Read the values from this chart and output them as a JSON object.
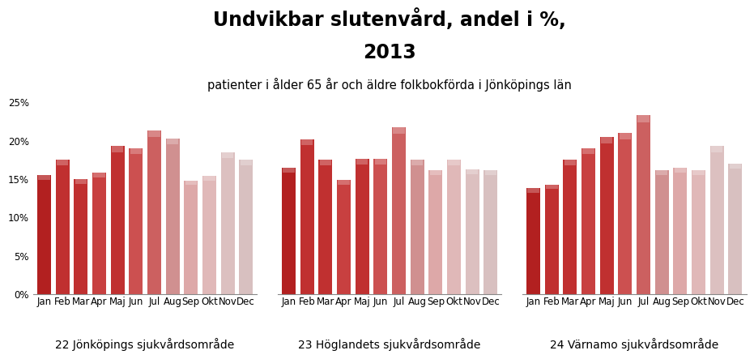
{
  "title_line1": "Undvikbar slutenvård, andel i %,",
  "title_line2": "2013",
  "subtitle": "patienter i ålder 65 år och äldre folkbokförda i Jönköpings län",
  "groups": [
    {
      "name": "22 Jönköpings sjukvårdsområde",
      "values": [
        15.5,
        17.5,
        15.0,
        15.8,
        19.3,
        19.0,
        21.3,
        20.3,
        14.8,
        15.4,
        18.5,
        17.5
      ]
    },
    {
      "name": "23 Höglandets sjukvårdsområde",
      "values": [
        16.5,
        20.2,
        17.5,
        14.9,
        17.6,
        17.6,
        21.8,
        17.5,
        16.2,
        17.5,
        16.3,
        16.2
      ]
    },
    {
      "name": "24 Värnamo sjukvårdsområde",
      "values": [
        13.8,
        14.3,
        17.5,
        19.0,
        20.5,
        21.0,
        23.3,
        16.2,
        16.5,
        16.2,
        19.3,
        17.0
      ]
    }
  ],
  "months": [
    "Jan",
    "Feb",
    "Mar",
    "Apr",
    "Maj",
    "Jun",
    "Jul",
    "Aug",
    "Sep",
    "Okt",
    "Nov",
    "Dec"
  ],
  "month_colors": [
    "#b22020",
    "#c03030",
    "#c03030",
    "#c84040",
    "#c03030",
    "#cc5050",
    "#cc6060",
    "#d09090",
    "#dda8a8",
    "#e0b8b8",
    "#dcc0c0",
    "#d8c0c0"
  ],
  "ylim": [
    0,
    0.26
  ],
  "yticks": [
    0.0,
    0.05,
    0.1,
    0.15,
    0.2,
    0.25
  ],
  "ytick_labels": [
    "0%",
    "5%",
    "10%",
    "15%",
    "20%",
    "25%"
  ],
  "background_color": "#ffffff",
  "title_fontsize": 17,
  "title2_fontsize": 17,
  "subtitle_fontsize": 10.5,
  "axis_label_fontsize": 8.5,
  "group_label_fontsize": 10
}
